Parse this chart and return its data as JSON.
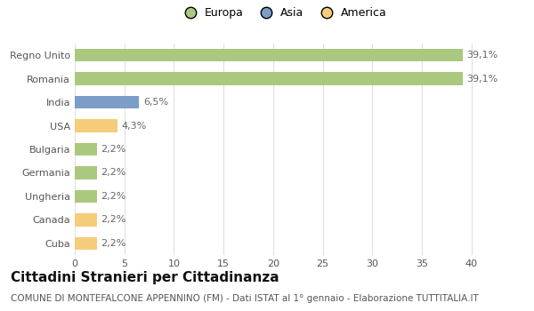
{
  "categories": [
    "Cuba",
    "Canada",
    "Ungheria",
    "Germania",
    "Bulgaria",
    "USA",
    "India",
    "Romania",
    "Regno Unito"
  ],
  "values": [
    2.2,
    2.2,
    2.2,
    2.2,
    2.2,
    4.3,
    6.5,
    39.1,
    39.1
  ],
  "labels": [
    "2,2%",
    "2,2%",
    "2,2%",
    "2,2%",
    "2,2%",
    "4,3%",
    "6,5%",
    "39,1%",
    "39,1%"
  ],
  "colors": [
    "#f5cc7a",
    "#f5cc7a",
    "#aac97e",
    "#aac97e",
    "#aac97e",
    "#f5cc7a",
    "#7b9dc7",
    "#aac97e",
    "#aac97e"
  ],
  "legend_labels": [
    "Europa",
    "Asia",
    "America"
  ],
  "legend_colors": [
    "#aac97e",
    "#7b9dc7",
    "#f5cc7a"
  ],
  "title": "Cittadini Stranieri per Cittadinanza",
  "subtitle": "COMUNE DI MONTEFALCONE APPENNINO (FM) - Dati ISTAT al 1° gennaio - Elaborazione TUTTITALIA.IT",
  "xlim": [
    0,
    42
  ],
  "xticks": [
    0,
    5,
    10,
    15,
    20,
    25,
    30,
    35,
    40
  ],
  "background_color": "#ffffff",
  "bar_height": 0.55,
  "grid_color": "#e0e0e0",
  "title_fontsize": 11,
  "subtitle_fontsize": 7.5,
  "label_fontsize": 8,
  "tick_fontsize": 8,
  "legend_fontsize": 9
}
